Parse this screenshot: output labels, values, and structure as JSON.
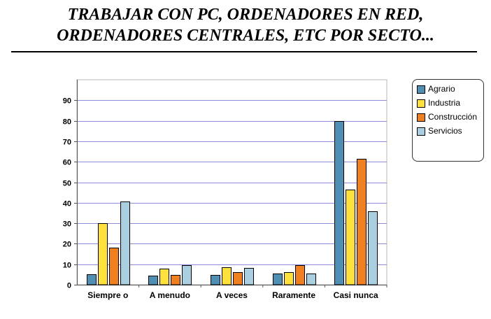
{
  "title_lines": [
    "TRABAJAR CON  PC, ORDENADORES EN RED,",
    "ORDENADORES CENTRALES, ETC  POR  SECTO..."
  ],
  "chart_data": {
    "type": "bar",
    "title": "TRABAJAR CON  PC, ORDENADORES EN RED, ORDENADORES CENTRALES, ETC  POR  SECTO...",
    "categories": [
      "Siempre o",
      "A menudo",
      "A veces",
      "Raramente",
      "Casi nunca"
    ],
    "series": [
      {
        "name": "Agrario",
        "color": "#4f8fb3",
        "values": [
          5,
          4.3,
          4.7,
          5.6,
          80
        ]
      },
      {
        "name": "Industria",
        "color": "#ffe13e",
        "values": [
          30,
          7.9,
          8.7,
          6.3,
          46.5
        ]
      },
      {
        "name": "Construcción",
        "color": "#f0801f",
        "values": [
          18,
          4.7,
          6,
          9.4,
          61.5
        ]
      },
      {
        "name": "Servicios",
        "color": "#a9cfe0",
        "values": [
          40.5,
          9.5,
          8.3,
          5.6,
          36
        ]
      }
    ],
    "ylim": [
      0,
      90
    ],
    "yticks": [
      0,
      10,
      20,
      30,
      40,
      50,
      60,
      70,
      80,
      90
    ],
    "xlabel": "",
    "ylabel": "",
    "grid": true,
    "legend_position": "right"
  }
}
